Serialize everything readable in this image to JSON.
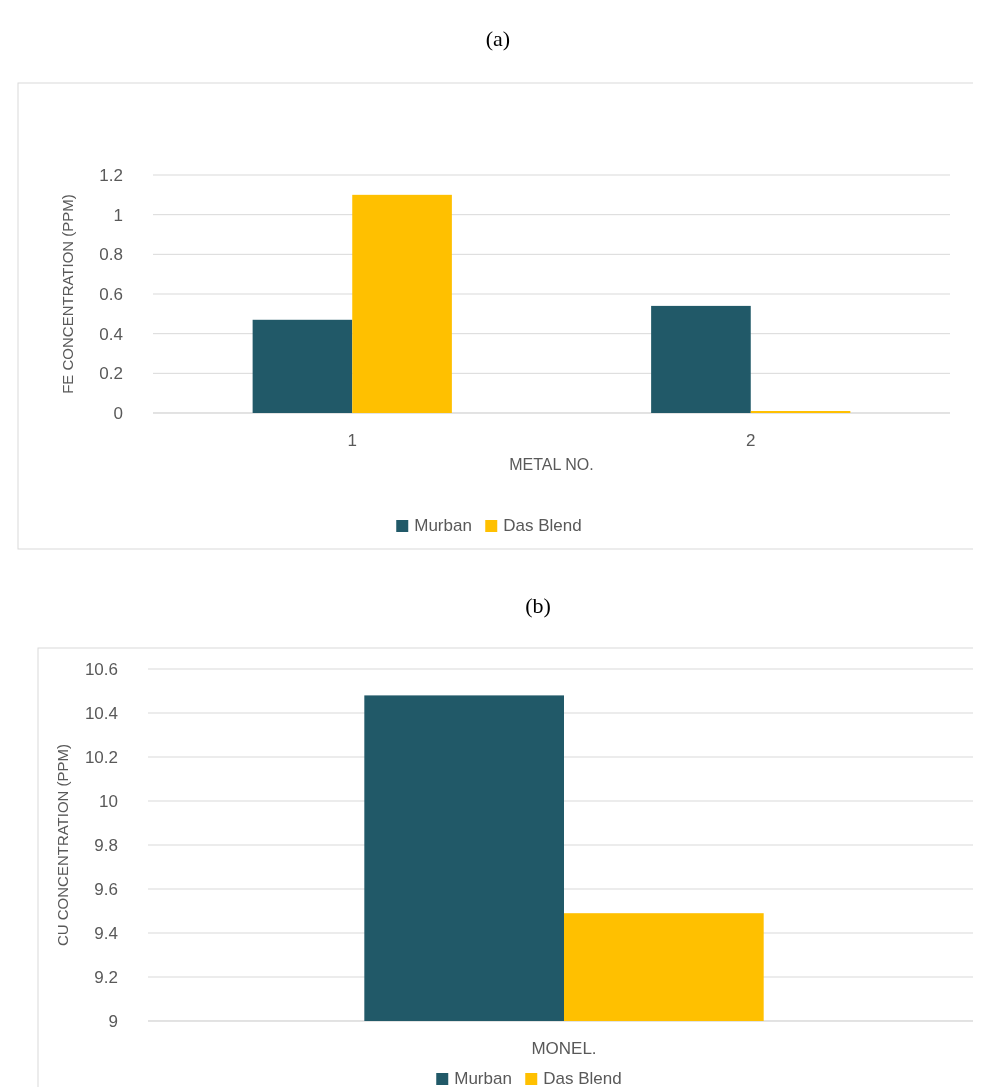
{
  "chart_data": [
    {
      "type": "bar",
      "title": "(a)",
      "xlabel": "METAL NO.",
      "ylabel": "FE CONCENTRATION (PPM)",
      "categories": [
        "1",
        "2"
      ],
      "series": [
        {
          "name": "Murban",
          "color": "#215968",
          "values": [
            0.47,
            0.54
          ]
        },
        {
          "name": "Das Blend",
          "color": "#ffc000",
          "values": [
            1.1,
            0.01
          ]
        }
      ],
      "ylim": [
        0,
        1.2
      ],
      "yticks": [
        0,
        0.2,
        0.4,
        0.6,
        0.8,
        1,
        1.2
      ],
      "grid": "y",
      "legend": "bottom"
    },
    {
      "type": "bar",
      "title": "(b)",
      "ylabel": "CU CONCENTRATION (PPM)",
      "categories": [
        "MONEL."
      ],
      "series": [
        {
          "name": "Murban",
          "color": "#215968",
          "values": [
            10.48
          ]
        },
        {
          "name": "Das Blend",
          "color": "#ffc000",
          "values": [
            9.49
          ]
        }
      ],
      "ylim": [
        9,
        10.6
      ],
      "yticks": [
        9,
        9.2,
        9.4,
        9.6,
        9.8,
        10,
        10.2,
        10.4,
        10.6
      ],
      "grid": "y",
      "legend": "bottom"
    }
  ]
}
